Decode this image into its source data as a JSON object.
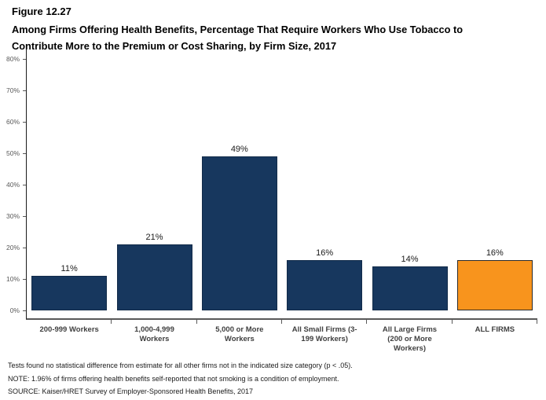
{
  "header": {
    "figure_label": "Figure 12.27",
    "title_lines": [
      "Among Firms Offering Health Benefits, Percentage That Require Workers Who Use Tobacco to",
      "Contribute More to the Premium or Cost Sharing, by Firm Size, 2017"
    ]
  },
  "chart_data": {
    "type": "bar",
    "title": "Among Firms Offering Health Benefits, Percentage That Require Workers Who Use Tobacco to Contribute More to the Premium or Cost Sharing, by Firm Size, 2017",
    "categories": [
      "200-999 Workers",
      "1,000-4,999 Workers",
      "5,000 or More Workers",
      "All Small Firms (3-199 Workers)",
      "All Large Firms (200 or More Workers)",
      "ALL FIRMS"
    ],
    "values": [
      11,
      21,
      49,
      16,
      14,
      16
    ],
    "value_labels": [
      "11%",
      "21%",
      "49%",
      "16%",
      "14%",
      "16%"
    ],
    "xlabel": "",
    "ylabel": "",
    "ylim": [
      0,
      80
    ],
    "ytick_step": 10,
    "ytick_labels": [
      "0%",
      "10%",
      "20%",
      "30%",
      "40%",
      "50%",
      "60%",
      "70%",
      "80%"
    ],
    "grid": false,
    "legend": "none",
    "bar_colors": [
      "#17375E",
      "#17375E",
      "#17375E",
      "#17375E",
      "#17375E",
      "#F8941D"
    ],
    "bar_border_colors": [
      "#122B49",
      "#122B49",
      "#122B49",
      "#122B49",
      "#122B49",
      "#2B2B2B"
    ],
    "colors": {
      "navy": "#17375E",
      "orange": "#F8941D",
      "axis_line": "#595959",
      "tick_text": "#595959"
    }
  },
  "notes": [
    "Tests found no statistical difference from estimate for all other firms not in the indicated size category (p < .05).",
    "NOTE: 1.96% of firms offering health benefits self-reported that not smoking is a condition of employment.",
    "SOURCE: Kaiser/HRET Survey of Employer-Sponsored Health Benefits, 2017"
  ]
}
